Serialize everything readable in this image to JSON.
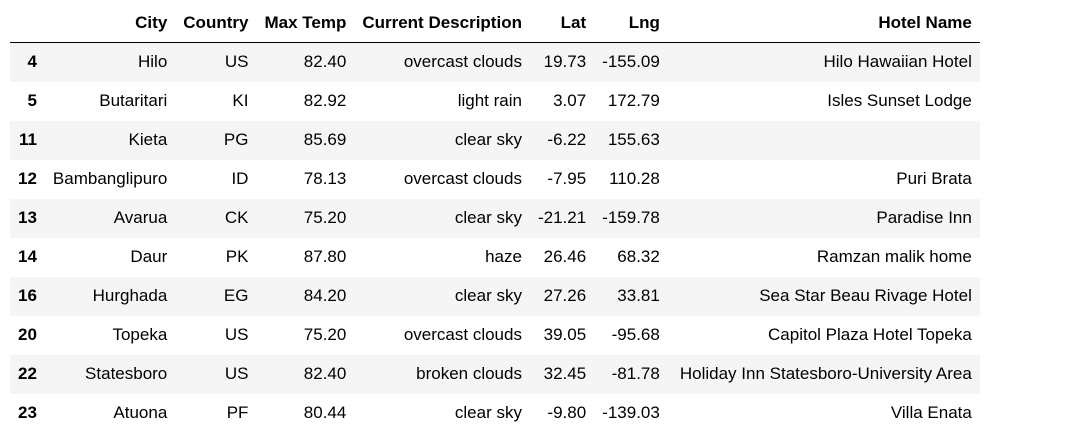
{
  "table": {
    "columns": [
      "",
      "City",
      "Country",
      "Max Temp",
      "Current Description",
      "Lat",
      "Lng",
      "Hotel Name"
    ],
    "rows": [
      {
        "index": "4",
        "city": "Hilo",
        "country": "US",
        "max_temp": "82.40",
        "description": "overcast clouds",
        "lat": "19.73",
        "lng": "-155.09",
        "hotel": "Hilo Hawaiian Hotel"
      },
      {
        "index": "5",
        "city": "Butaritari",
        "country": "KI",
        "max_temp": "82.92",
        "description": "light rain",
        "lat": "3.07",
        "lng": "172.79",
        "hotel": "Isles Sunset Lodge"
      },
      {
        "index": "11",
        "city": "Kieta",
        "country": "PG",
        "max_temp": "85.69",
        "description": "clear sky",
        "lat": "-6.22",
        "lng": "155.63",
        "hotel": ""
      },
      {
        "index": "12",
        "city": "Bambanglipuro",
        "country": "ID",
        "max_temp": "78.13",
        "description": "overcast clouds",
        "lat": "-7.95",
        "lng": "110.28",
        "hotel": "Puri Brata"
      },
      {
        "index": "13",
        "city": "Avarua",
        "country": "CK",
        "max_temp": "75.20",
        "description": "clear sky",
        "lat": "-21.21",
        "lng": "-159.78",
        "hotel": "Paradise Inn"
      },
      {
        "index": "14",
        "city": "Daur",
        "country": "PK",
        "max_temp": "87.80",
        "description": "haze",
        "lat": "26.46",
        "lng": "68.32",
        "hotel": "Ramzan malik home"
      },
      {
        "index": "16",
        "city": "Hurghada",
        "country": "EG",
        "max_temp": "84.20",
        "description": "clear sky",
        "lat": "27.26",
        "lng": "33.81",
        "hotel": "Sea Star Beau Rivage Hotel"
      },
      {
        "index": "20",
        "city": "Topeka",
        "country": "US",
        "max_temp": "75.20",
        "description": "overcast clouds",
        "lat": "39.05",
        "lng": "-95.68",
        "hotel": "Capitol Plaza Hotel Topeka"
      },
      {
        "index": "22",
        "city": "Statesboro",
        "country": "US",
        "max_temp": "82.40",
        "description": "broken clouds",
        "lat": "32.45",
        "lng": "-81.78",
        "hotel": "Holiday Inn Statesboro-University Area"
      },
      {
        "index": "23",
        "city": "Atuona",
        "country": "PF",
        "max_temp": "80.44",
        "description": "clear sky",
        "lat": "-9.80",
        "lng": "-139.03",
        "hotel": "Villa Enata"
      }
    ]
  }
}
